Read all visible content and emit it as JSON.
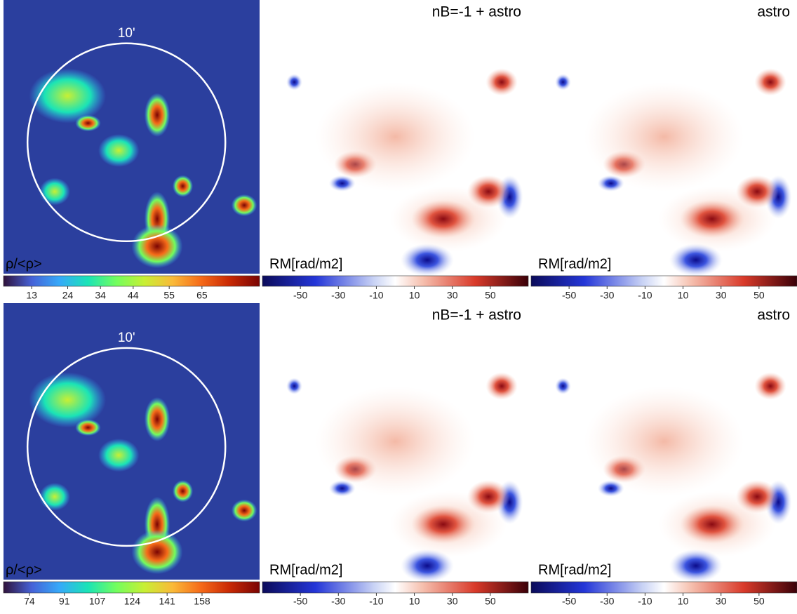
{
  "panels": [
    {
      "colormap": "turbo",
      "circle_label": "10'",
      "label": "ρ/<ρ>",
      "colorbar": {
        "lim": [
          4.4,
          82.6
        ],
        "ticks": [
          13,
          24,
          34,
          44,
          55,
          65
        ]
      }
    },
    {
      "colormap": "seismic",
      "title": "nB=-1 + astro",
      "label": "RM[rad/m2]",
      "colorbar": {
        "lim": [
          -70,
          70
        ],
        "ticks": [
          -50,
          -30,
          -10,
          10,
          30,
          50
        ]
      }
    },
    {
      "colormap": "seismic",
      "title": "astro",
      "label": "RM[rad/m2]",
      "colorbar": {
        "lim": [
          -70,
          70
        ],
        "ticks": [
          -50,
          -30,
          -10,
          10,
          30,
          50
        ]
      }
    },
    {
      "colormap": "turbo",
      "circle_label": "10'",
      "label": "ρ/<ρ>",
      "colorbar": {
        "lim": [
          61.4,
          186
        ],
        "ticks": [
          74,
          91,
          107,
          124,
          141,
          158
        ]
      }
    },
    {
      "colormap": "seismic",
      "title": "nB=-1 + astro",
      "label": "RM[rad/m2]",
      "colorbar": {
        "lim": [
          -70,
          70
        ],
        "ticks": [
          -50,
          -30,
          -10,
          10,
          30,
          50
        ]
      }
    },
    {
      "colormap": "seismic",
      "title": "astro",
      "label": "RM[rad/m2]",
      "colorbar": {
        "lim": [
          -70,
          70
        ],
        "ticks": [
          -50,
          -30,
          -10,
          10,
          30,
          50
        ]
      }
    }
  ]
}
